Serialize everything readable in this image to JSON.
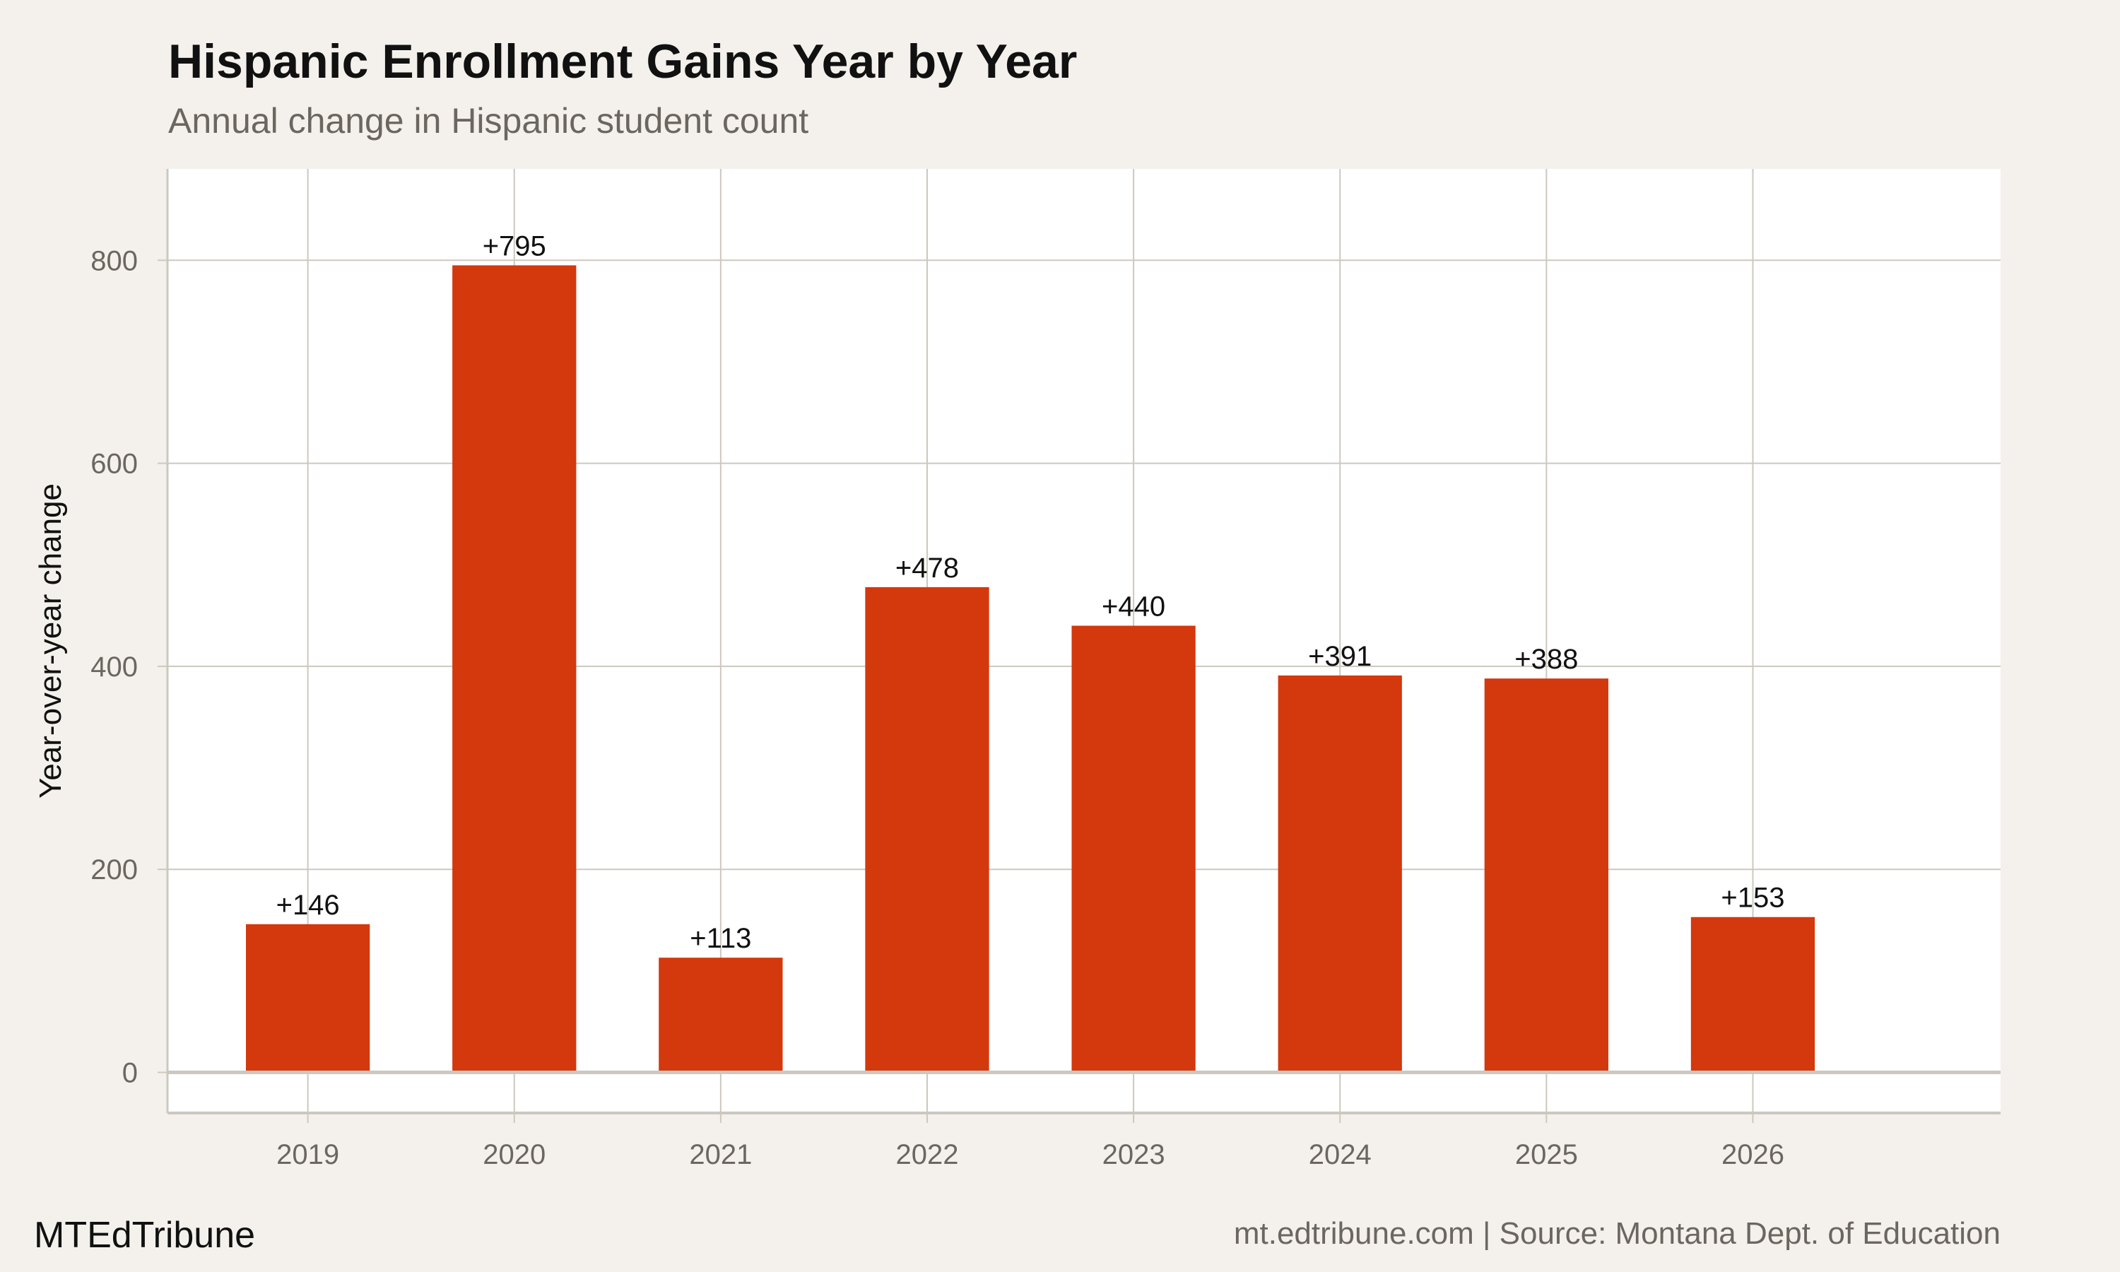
{
  "chart_data": {
    "type": "bar",
    "title": "Hispanic Enrollment Gains Year by Year",
    "subtitle": "Annual change in Hispanic student count",
    "xlabel": "",
    "ylabel": "Year-over-year change",
    "categories": [
      "2019",
      "2020",
      "2021",
      "2022",
      "2023",
      "2024",
      "2025",
      "2026"
    ],
    "values": [
      146,
      795,
      113,
      478,
      440,
      391,
      388,
      153
    ],
    "data_labels": [
      "+146",
      "+795",
      "+113",
      "+478",
      "+440",
      "+391",
      "+388",
      "+153"
    ],
    "ylim": [
      -40,
      890
    ],
    "yticks": [
      0,
      200,
      400,
      600,
      800
    ],
    "grid": true,
    "bar_color": "#d4380d",
    "background": "#f4f1ec",
    "panel_background": "#ffffff",
    "grid_color": "#cdc8bf"
  },
  "footer": {
    "brand": "MTEdTribune",
    "source": "mt.edtribune.com | Source: Montana Dept. of Education"
  }
}
